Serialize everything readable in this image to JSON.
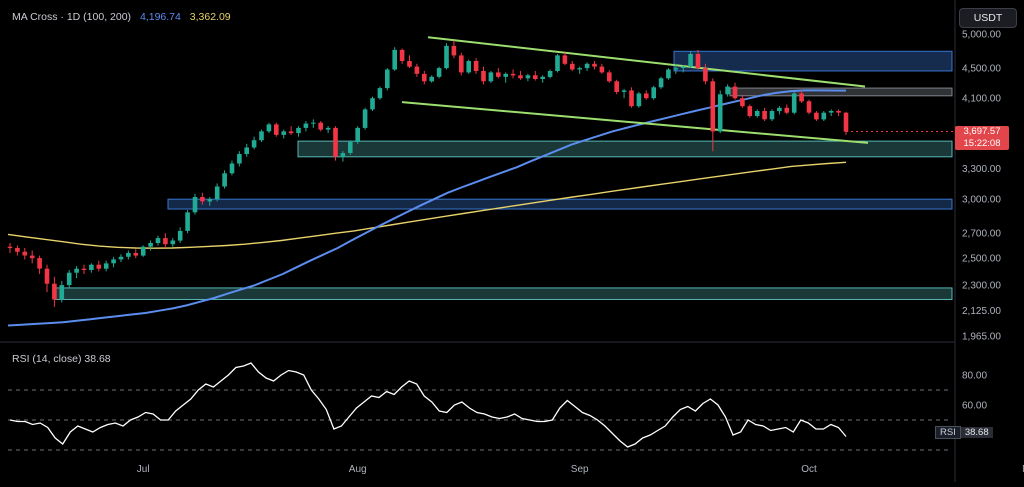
{
  "header": {
    "indicator_label": "MA Cross · 1D (100, 200)",
    "ma100_value": "4,196.74",
    "ma200_value": "3,362.09",
    "currency_button": "USDT"
  },
  "price_badge": {
    "price": "3,697.57",
    "countdown": "15:22:08"
  },
  "rsi": {
    "label": "RSI (14, close)",
    "value": "38.68",
    "tag": "RSI"
  },
  "colors": {
    "up": "#22ab94",
    "down": "#f23645",
    "ma100": "#5b8def",
    "ma200": "#e8d26a",
    "channel": "#9ddf6f",
    "zone_teal": "#5fc9c4",
    "zone_blue": "#3d7fe0",
    "rsi_line": "#ffffff"
  },
  "chart_data": [
    {
      "type": "candlestick",
      "title": "",
      "price_axis_ticks": [
        "5,000.00",
        "4,500.00",
        "4,100.00",
        "3,700.00",
        "3,300.00",
        "3,000.00",
        "2,700.00",
        "2,500.00",
        "2,300.00",
        "2,125.00",
        "1,965.00"
      ],
      "month_labels": [
        "Jul",
        "Aug",
        "Sep",
        "Oct",
        "Nov"
      ],
      "ylim": [
        1965,
        5000
      ],
      "scale": "log",
      "candles_ohlc": [
        [
          2590,
          2620,
          2540,
          2580
        ],
        [
          2580,
          2600,
          2520,
          2550
        ],
        [
          2550,
          2580,
          2490,
          2520
        ],
        [
          2520,
          2560,
          2460,
          2500
        ],
        [
          2500,
          2520,
          2380,
          2420
        ],
        [
          2420,
          2450,
          2250,
          2310
        ],
        [
          2310,
          2360,
          2150,
          2200
        ],
        [
          2200,
          2330,
          2180,
          2300
        ],
        [
          2300,
          2410,
          2280,
          2390
        ],
        [
          2390,
          2440,
          2350,
          2420
        ],
        [
          2420,
          2450,
          2380,
          2410
        ],
        [
          2410,
          2460,
          2390,
          2450
        ],
        [
          2450,
          2480,
          2400,
          2420
        ],
        [
          2420,
          2480,
          2400,
          2460
        ],
        [
          2460,
          2510,
          2430,
          2490
        ],
        [
          2490,
          2530,
          2470,
          2510
        ],
        [
          2510,
          2560,
          2490,
          2540
        ],
        [
          2540,
          2570,
          2500,
          2520
        ],
        [
          2520,
          2600,
          2510,
          2590
        ],
        [
          2590,
          2640,
          2560,
          2620
        ],
        [
          2620,
          2680,
          2600,
          2660
        ],
        [
          2660,
          2700,
          2580,
          2610
        ],
        [
          2610,
          2660,
          2590,
          2640
        ],
        [
          2640,
          2750,
          2620,
          2720
        ],
        [
          2720,
          2900,
          2700,
          2880
        ],
        [
          2880,
          3050,
          2860,
          3020
        ],
        [
          3020,
          3060,
          2950,
          2980
        ],
        [
          2980,
          3020,
          2940,
          3000
        ],
        [
          3000,
          3150,
          2980,
          3120
        ],
        [
          3120,
          3280,
          3100,
          3250
        ],
        [
          3250,
          3380,
          3230,
          3350
        ],
        [
          3350,
          3480,
          3320,
          3450
        ],
        [
          3450,
          3560,
          3420,
          3520
        ],
        [
          3520,
          3640,
          3500,
          3600
        ],
        [
          3600,
          3720,
          3580,
          3700
        ],
        [
          3700,
          3800,
          3680,
          3780
        ],
        [
          3780,
          3800,
          3640,
          3660
        ],
        [
          3660,
          3720,
          3620,
          3700
        ],
        [
          3700,
          3760,
          3660,
          3680
        ],
        [
          3680,
          3760,
          3640,
          3740
        ],
        [
          3740,
          3820,
          3700,
          3790
        ],
        [
          3790,
          3840,
          3740,
          3800
        ],
        [
          3800,
          3820,
          3700,
          3720
        ],
        [
          3720,
          3760,
          3680,
          3740
        ],
        [
          3740,
          3760,
          3380,
          3420
        ],
        [
          3420,
          3480,
          3370,
          3460
        ],
        [
          3460,
          3600,
          3440,
          3580
        ],
        [
          3580,
          3760,
          3560,
          3740
        ],
        [
          3740,
          3980,
          3720,
          3960
        ],
        [
          3960,
          4120,
          3940,
          4100
        ],
        [
          4100,
          4250,
          4080,
          4230
        ],
        [
          4230,
          4500,
          4200,
          4480
        ],
        [
          4480,
          4800,
          4460,
          4760
        ],
        [
          4760,
          4780,
          4560,
          4600
        ],
        [
          4600,
          4680,
          4500,
          4520
        ],
        [
          4520,
          4560,
          4380,
          4420
        ],
        [
          4420,
          4460,
          4280,
          4320
        ],
        [
          4320,
          4400,
          4300,
          4380
        ],
        [
          4380,
          4520,
          4360,
          4500
        ],
        [
          4500,
          4860,
          4480,
          4820
        ],
        [
          4820,
          4900,
          4640,
          4680
        ],
        [
          4680,
          4720,
          4400,
          4440
        ],
        [
          4440,
          4620,
          4420,
          4600
        ],
        [
          4600,
          4640,
          4420,
          4460
        ],
        [
          4460,
          4520,
          4280,
          4320
        ],
        [
          4320,
          4460,
          4300,
          4440
        ],
        [
          4440,
          4500,
          4360,
          4380
        ],
        [
          4380,
          4440,
          4300,
          4420
        ],
        [
          4420,
          4480,
          4360,
          4400
        ],
        [
          4400,
          4460,
          4340,
          4360
        ],
        [
          4360,
          4420,
          4320,
          4400
        ],
        [
          4400,
          4460,
          4330,
          4350
        ],
        [
          4350,
          4400,
          4300,
          4380
        ],
        [
          4380,
          4480,
          4360,
          4460
        ],
        [
          4460,
          4700,
          4440,
          4680
        ],
        [
          4680,
          4720,
          4540,
          4560
        ],
        [
          4560,
          4600,
          4460,
          4480
        ],
        [
          4480,
          4520,
          4420,
          4500
        ],
        [
          4500,
          4580,
          4460,
          4560
        ],
        [
          4560,
          4600,
          4480,
          4520
        ],
        [
          4520,
          4560,
          4420,
          4440
        ],
        [
          4440,
          4470,
          4300,
          4320
        ],
        [
          4320,
          4340,
          4150,
          4180
        ],
        [
          4180,
          4220,
          4100,
          4200
        ],
        [
          4200,
          4240,
          3980,
          4000
        ],
        [
          4000,
          4180,
          3980,
          4160
        ],
        [
          4160,
          4200,
          4080,
          4100
        ],
        [
          4100,
          4260,
          4080,
          4240
        ],
        [
          4240,
          4380,
          4220,
          4360
        ],
        [
          4360,
          4500,
          4340,
          4480
        ],
        [
          4480,
          4560,
          4420,
          4500
        ],
        [
          4500,
          4540,
          4440,
          4520
        ],
        [
          4520,
          4740,
          4500,
          4700
        ],
        [
          4700,
          4760,
          4480,
          4500
        ],
        [
          4500,
          4560,
          4280,
          4320
        ],
        [
          4320,
          4360,
          3480,
          3700
        ],
        [
          3700,
          4200,
          3680,
          4150
        ],
        [
          4150,
          4280,
          4120,
          4250
        ],
        [
          4250,
          4300,
          4080,
          4100
        ],
        [
          4100,
          4140,
          3980,
          4000
        ],
        [
          4000,
          4020,
          3860,
          3880
        ],
        [
          3880,
          3960,
          3860,
          3940
        ],
        [
          3940,
          3980,
          3820,
          3840
        ],
        [
          3840,
          3960,
          3820,
          3940
        ],
        [
          3940,
          4000,
          3900,
          3980
        ],
        [
          3980,
          4020,
          3900,
          3920
        ],
        [
          3920,
          4180,
          3900,
          4160
        ],
        [
          4160,
          4200,
          4040,
          4060
        ],
        [
          4060,
          4080,
          3900,
          3920
        ],
        [
          3920,
          3940,
          3820,
          3840
        ],
        [
          3840,
          3940,
          3820,
          3920
        ],
        [
          3920,
          3960,
          3880,
          3940
        ],
        [
          3940,
          3960,
          3880,
          3920
        ],
        [
          3920,
          3930,
          3660,
          3698
        ]
      ],
      "series": [
        {
          "name": "MA 100",
          "values": [
            2030,
            2035,
            2040,
            2045,
            2050,
            2060,
            2070,
            2080,
            2090,
            2100,
            2110,
            2125,
            2140,
            2160,
            2185,
            2210,
            2240,
            2270,
            2300,
            2340,
            2380,
            2430,
            2480,
            2530,
            2580,
            2640,
            2700,
            2760,
            2820,
            2880,
            2940,
            3000,
            3060,
            3110,
            3160,
            3210,
            3260,
            3310,
            3370,
            3430,
            3490,
            3550,
            3600,
            3650,
            3700,
            3740,
            3780,
            3820,
            3860,
            3900,
            3940,
            3980,
            4020,
            4060,
            4100,
            4140,
            4170,
            4190,
            4200,
            4200,
            4199,
            4197
          ]
        },
        {
          "name": "MA 200",
          "values": [
            2690,
            2670,
            2650,
            2630,
            2610,
            2595,
            2585,
            2580,
            2578,
            2580,
            2585,
            2592,
            2600,
            2610,
            2625,
            2640,
            2660,
            2680,
            2700,
            2720,
            2745,
            2770,
            2795,
            2820,
            2845,
            2870,
            2895,
            2920,
            2945,
            2970,
            2995,
            3020,
            3045,
            3070,
            3095,
            3120,
            3145,
            3170,
            3195,
            3220,
            3245,
            3270,
            3295,
            3320,
            3335,
            3350,
            3362
          ]
        }
      ],
      "channel": {
        "upper": [
          4950,
          4250
        ],
        "lower": [
          4050,
          3570
        ]
      },
      "zones": [
        {
          "name": "zone-top",
          "low": 4460,
          "high": 4740
        },
        {
          "name": "zone-mid-gray",
          "low": 4130,
          "high": 4230
        },
        {
          "name": "zone-support-1",
          "low": 3420,
          "high": 3590
        },
        {
          "name": "zone-support-2",
          "low": 2910,
          "high": 3000
        },
        {
          "name": "zone-support-3",
          "low": 2200,
          "high": 2280
        }
      ]
    },
    {
      "type": "line",
      "title": "RSI (14, close)",
      "ylim": [
        30,
        90
      ],
      "levels": [
        70,
        50,
        30
      ],
      "tick_labels": [
        "80.00",
        "60.00"
      ],
      "series": [
        {
          "name": "RSI",
          "values": [
            50,
            49,
            49,
            47,
            48,
            45,
            38,
            34,
            42,
            46,
            44,
            42,
            45,
            47,
            48,
            46,
            50,
            52,
            55,
            54,
            50,
            50,
            56,
            60,
            64,
            70,
            74,
            72,
            76,
            80,
            85,
            86,
            88,
            82,
            78,
            76,
            80,
            83,
            82,
            80,
            70,
            64,
            57,
            44,
            46,
            52,
            58,
            62,
            66,
            65,
            69,
            67,
            72,
            76,
            74,
            66,
            62,
            56,
            55,
            60,
            62,
            58,
            55,
            54,
            52,
            51,
            52,
            54,
            51,
            50,
            49,
            49,
            50,
            58,
            63,
            59,
            55,
            53,
            50,
            46,
            41,
            36,
            32,
            34,
            38,
            40,
            43,
            46,
            52,
            57,
            59,
            56,
            61,
            64,
            60,
            52,
            40,
            42,
            50,
            47,
            46,
            43,
            44,
            45,
            42,
            50,
            48,
            44,
            44,
            47,
            45,
            39
          ]
        }
      ]
    }
  ]
}
